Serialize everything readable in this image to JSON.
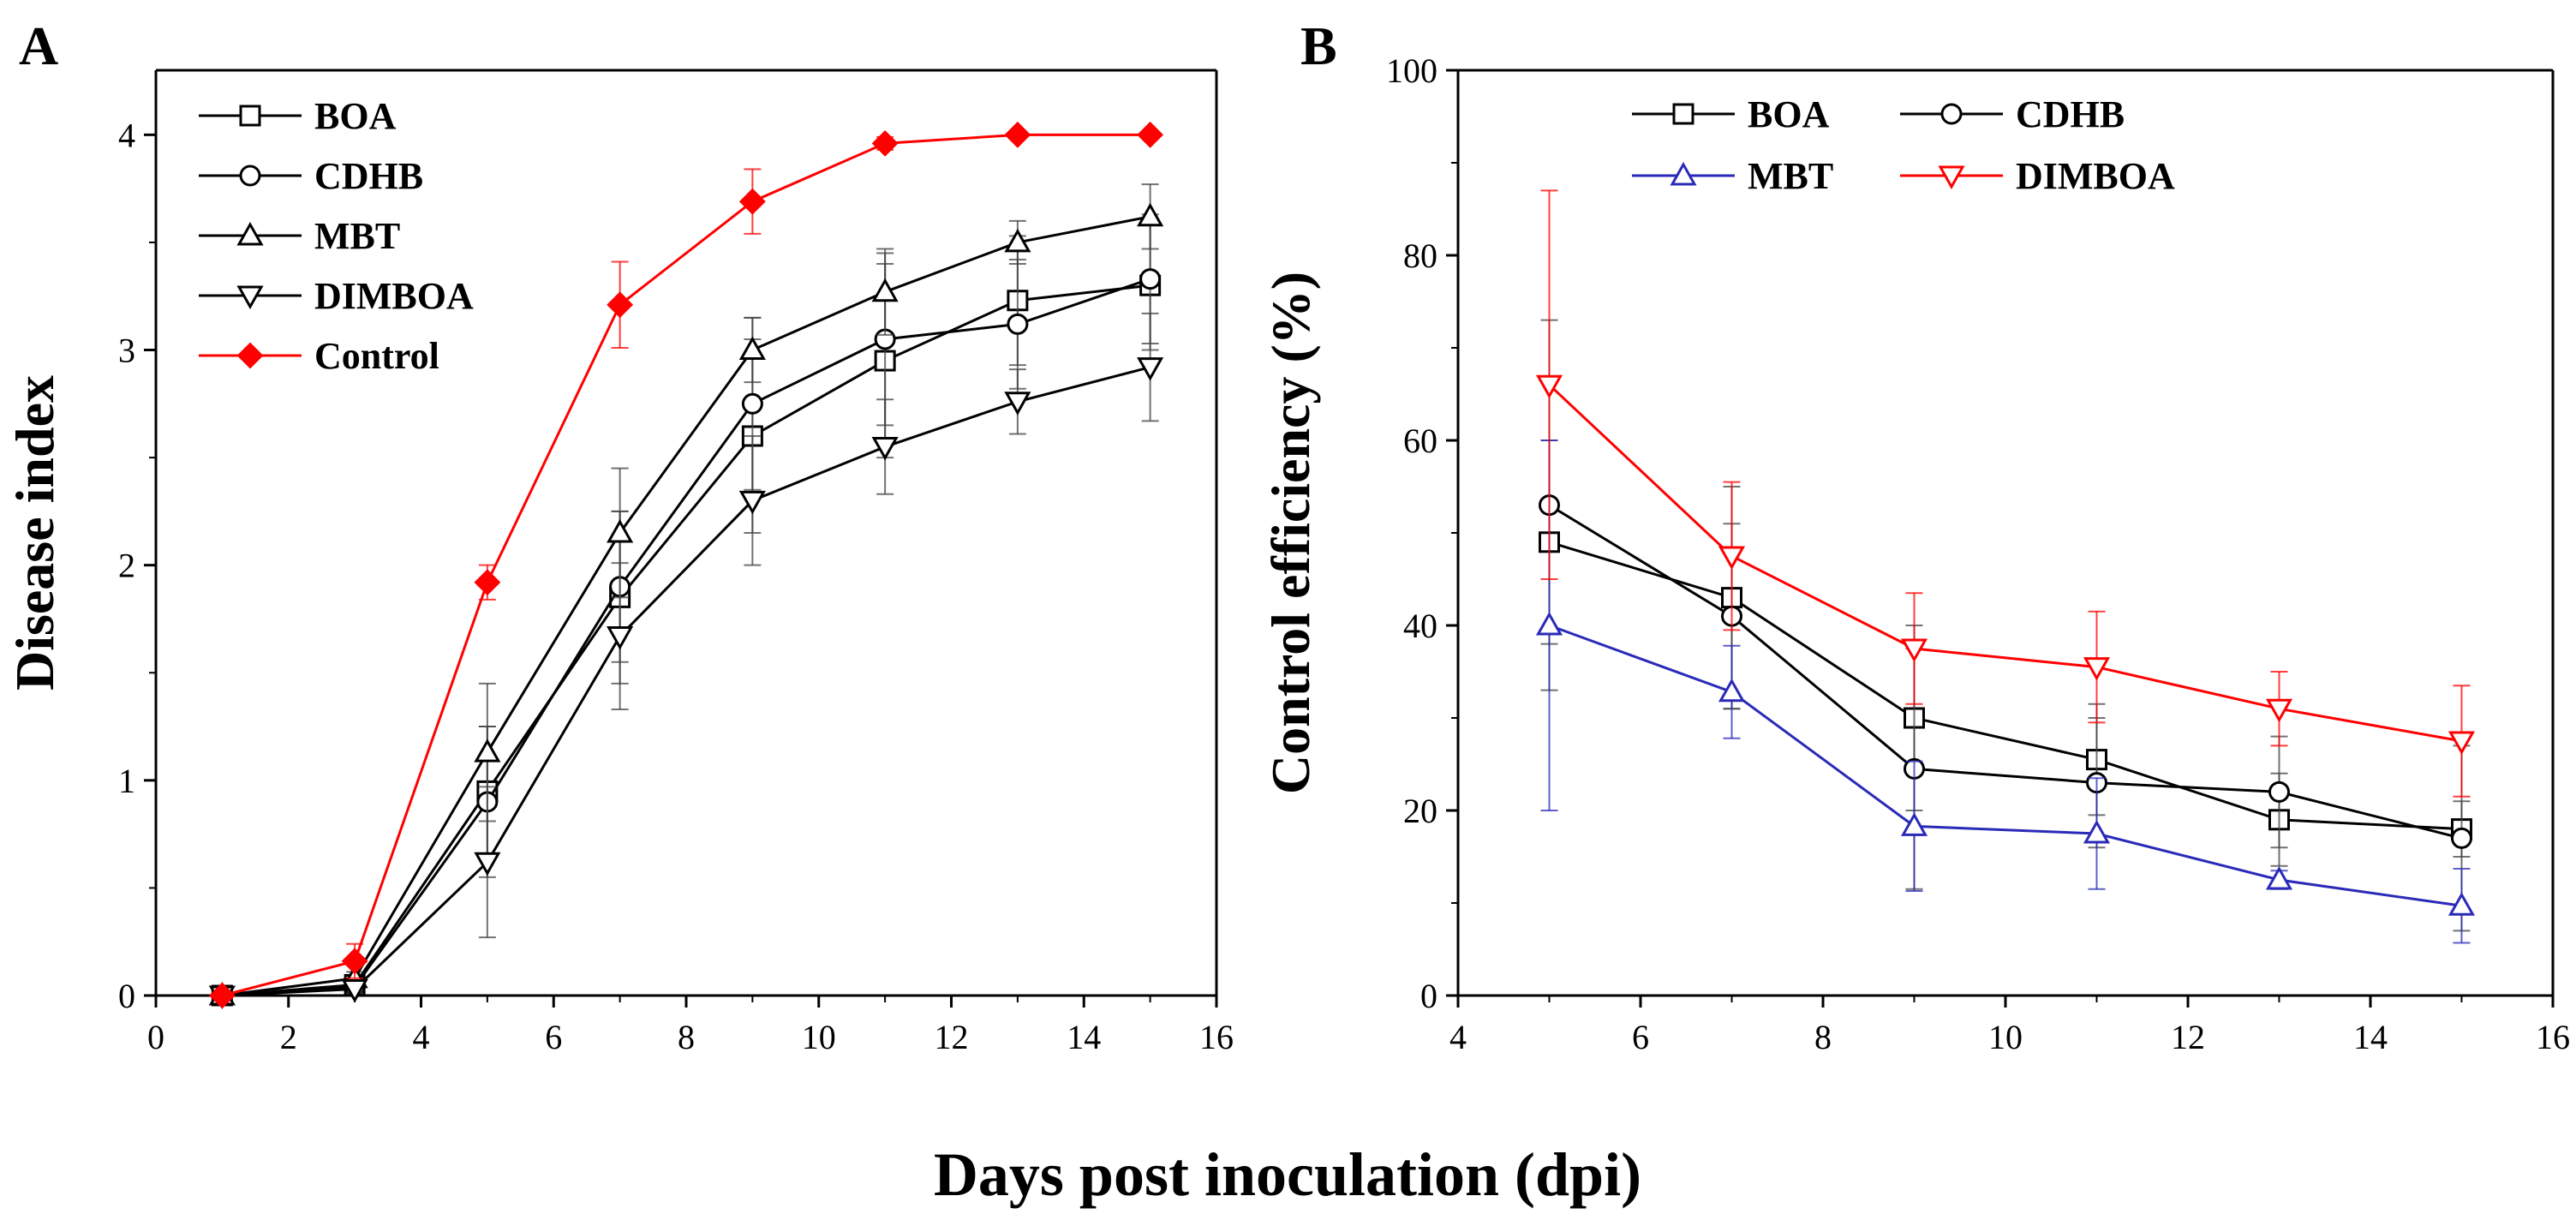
{
  "shared_xlabel": "Days post inoculation (dpi)",
  "chart_data": [
    {
      "panel": "A",
      "type": "line",
      "title": "",
      "xlabel": "",
      "ylabel": "Disease index",
      "xlim": [
        0,
        16
      ],
      "ylim": [
        0,
        4.3
      ],
      "xticks": [
        0,
        2,
        4,
        6,
        8,
        10,
        12,
        14,
        16
      ],
      "yticks": [
        0,
        1,
        2,
        3,
        4
      ],
      "legend_position": "top-left",
      "series": [
        {
          "name": "BOA",
          "marker": "square",
          "color": "#000000",
          "x": [
            1,
            3,
            5,
            7,
            9,
            11,
            13,
            15
          ],
          "y": [
            0,
            0.05,
            0.95,
            1.85,
            2.6,
            2.95,
            3.23,
            3.3
          ],
          "err": [
            0,
            0.02,
            0.3,
            0.4,
            0.45,
            0.45,
            0.3,
            0.3
          ]
        },
        {
          "name": "CDHB",
          "marker": "circle",
          "color": "#000000",
          "x": [
            1,
            3,
            5,
            7,
            9,
            11,
            13,
            15
          ],
          "y": [
            0,
            0.04,
            0.9,
            1.9,
            2.75,
            3.05,
            3.12,
            3.33
          ],
          "err": [
            0,
            0.02,
            0.35,
            0.35,
            0.4,
            0.4,
            0.3,
            0.3
          ]
        },
        {
          "name": "MBT",
          "marker": "triangle-up",
          "color": "#000000",
          "x": [
            1,
            3,
            5,
            7,
            9,
            11,
            13,
            15
          ],
          "y": [
            0,
            0.08,
            1.13,
            2.15,
            3.0,
            3.27,
            3.5,
            3.62
          ],
          "err": [
            0,
            0.03,
            0.32,
            0.3,
            0.15,
            0.2,
            0.1,
            0.15
          ]
        },
        {
          "name": "DIMBOA",
          "marker": "triangle-down",
          "color": "#000000",
          "x": [
            1,
            3,
            5,
            7,
            9,
            11,
            13,
            15
          ],
          "y": [
            0,
            0.03,
            0.62,
            1.67,
            2.3,
            2.55,
            2.76,
            2.92
          ],
          "err": [
            0,
            0.02,
            0.35,
            0.34,
            0.3,
            0.22,
            0.15,
            0.25
          ]
        },
        {
          "name": "Control",
          "marker": "diamond-filled",
          "color": "#ff0000",
          "x": [
            1,
            3,
            5,
            7,
            9,
            11,
            13,
            15
          ],
          "y": [
            0,
            0.16,
            1.92,
            3.21,
            3.69,
            3.96,
            4.0,
            4.0
          ],
          "err": [
            0,
            0.08,
            0.08,
            0.2,
            0.15,
            0.03,
            0,
            0
          ]
        }
      ]
    },
    {
      "panel": "B",
      "type": "line",
      "title": "",
      "xlabel": "",
      "ylabel": "Control efficiency (%)",
      "xlim": [
        4,
        16
      ],
      "ylim": [
        0,
        100
      ],
      "xticks": [
        4,
        6,
        8,
        10,
        12,
        14,
        16
      ],
      "yticks": [
        0,
        20,
        40,
        60,
        80,
        100
      ],
      "legend_position": "top-center",
      "series": [
        {
          "name": "BOA",
          "marker": "square",
          "color": "#000000",
          "x": [
            5,
            7,
            9,
            11,
            13,
            15
          ],
          "y": [
            49,
            43,
            30,
            25.5,
            19,
            18
          ],
          "err": [
            11,
            12,
            10,
            6,
            5,
            3
          ]
        },
        {
          "name": "CDHB",
          "marker": "circle",
          "color": "#000000",
          "x": [
            5,
            7,
            9,
            11,
            13,
            15
          ],
          "y": [
            53,
            41,
            24.5,
            23,
            22,
            17
          ],
          "err": [
            20,
            10,
            13,
            7,
            6,
            10
          ]
        },
        {
          "name": "MBT",
          "marker": "triangle-up",
          "color": "#2a2ab8",
          "x": [
            5,
            7,
            9,
            11,
            13,
            15
          ],
          "y": [
            40,
            32.8,
            18.3,
            17.5,
            12.5,
            9.7
          ],
          "err": [
            20,
            5,
            7,
            6,
            1,
            4
          ]
        },
        {
          "name": "DIMBOA",
          "marker": "triangle-down",
          "color": "#ff0000",
          "x": [
            5,
            7,
            9,
            11,
            13,
            15
          ],
          "y": [
            66,
            47.5,
            37.5,
            35.5,
            31,
            27.5
          ],
          "err": [
            21,
            8,
            6,
            6,
            4,
            6
          ]
        }
      ]
    }
  ]
}
